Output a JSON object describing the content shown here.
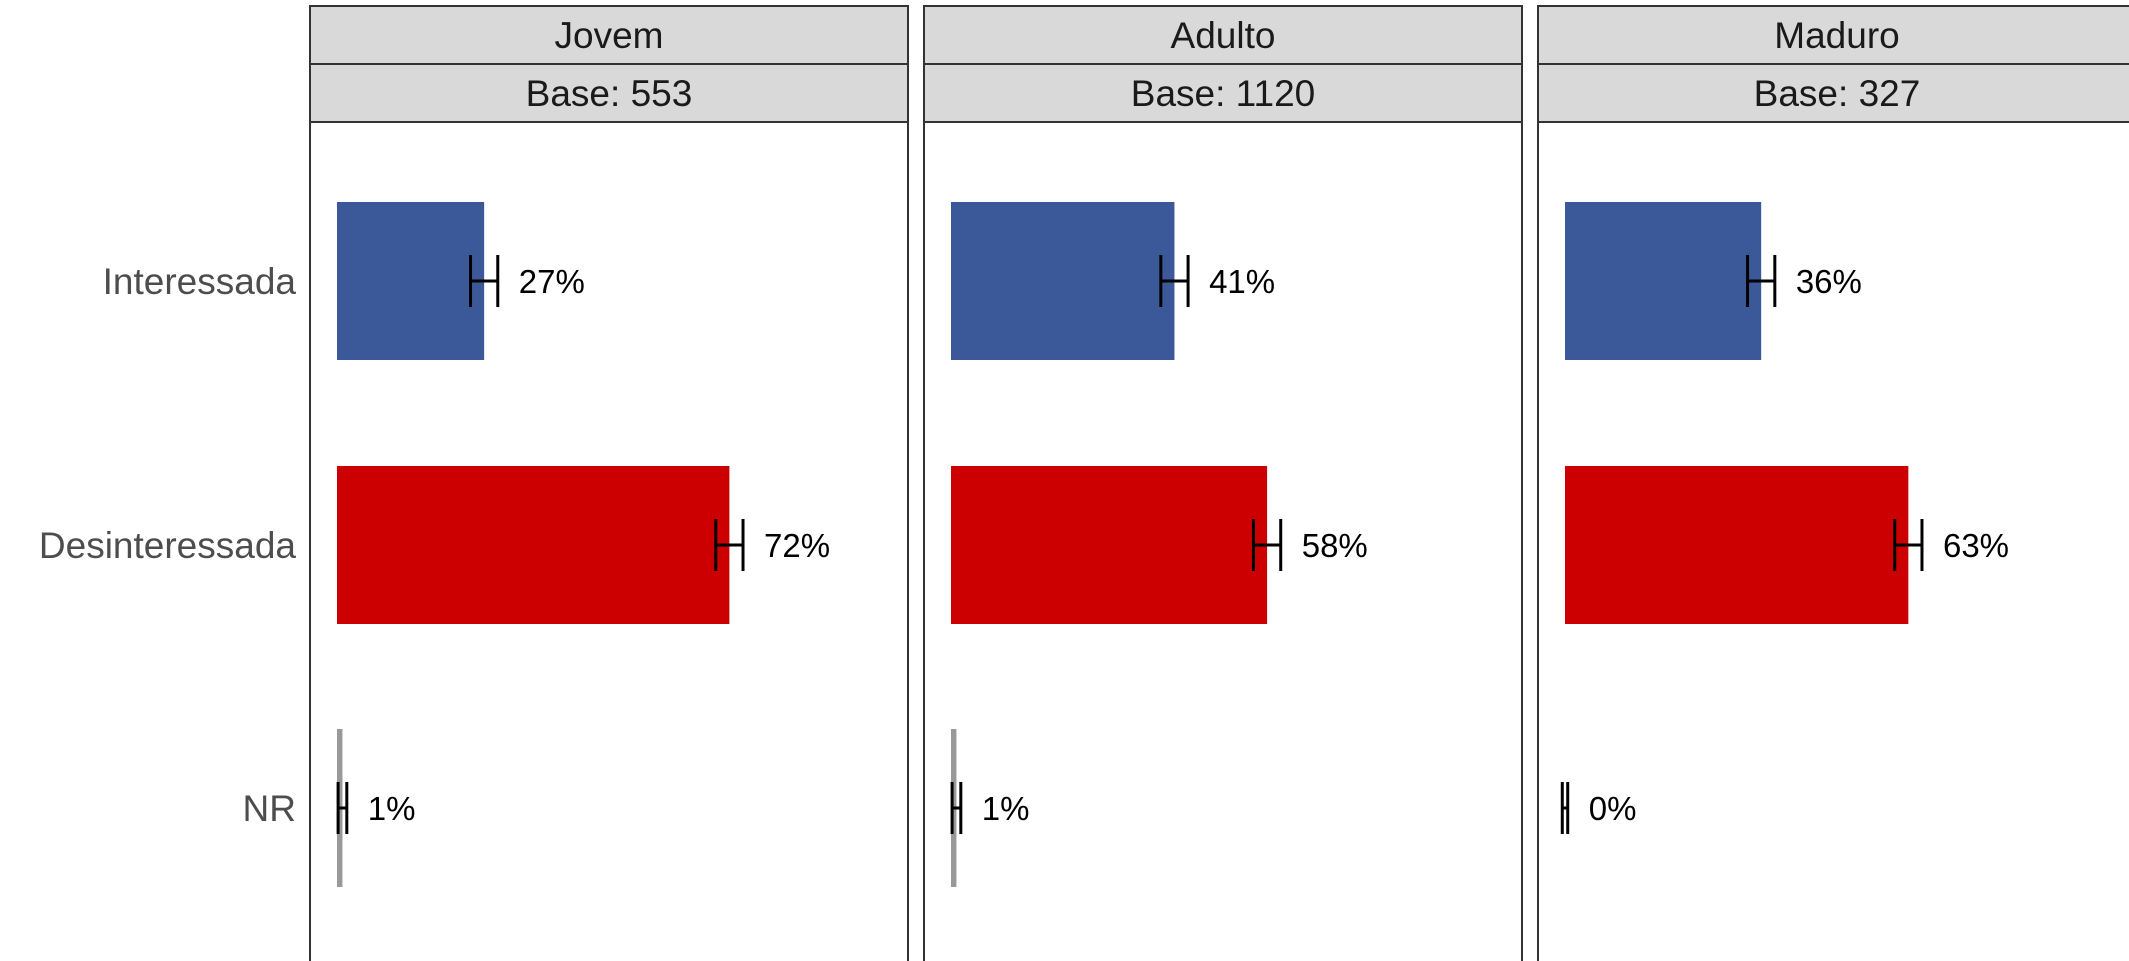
{
  "chart_data": {
    "type": "bar",
    "orientation": "horizontal",
    "categories": [
      "Interessada",
      "Desinteressada",
      "NR"
    ],
    "xlim": [
      0,
      100
    ],
    "grid": false,
    "legend": "none",
    "colors": {
      "Interessada": "#3B5998",
      "Desinteressada": "#CC0000",
      "NR": "#999999"
    },
    "facets": [
      {
        "name": "Jovem",
        "base_label": "Base: 553",
        "values": [
          27,
          72,
          1
        ],
        "error": [
          2.5,
          2.5,
          0.8
        ],
        "labels": [
          "27%",
          "72%",
          "1%"
        ]
      },
      {
        "name": "Adulto",
        "base_label": "Base: 1120",
        "values": [
          41,
          58,
          1
        ],
        "error": [
          2.5,
          2.5,
          0.8
        ],
        "labels": [
          "41%",
          "58%",
          "1%"
        ]
      },
      {
        "name": "Maduro",
        "base_label": "Base: 327",
        "values": [
          36,
          63,
          0
        ],
        "error": [
          2.5,
          2.5,
          0.5
        ],
        "labels": [
          "36%",
          "63%",
          "0%"
        ]
      }
    ]
  }
}
